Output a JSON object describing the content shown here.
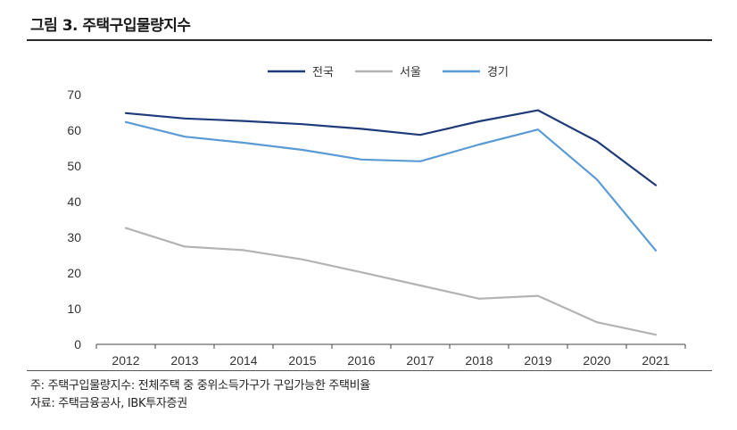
{
  "figure": {
    "title": "그림 3. 주택구입물량지수",
    "note": "주: 주택구입물량지수: 전체주택 중 중위소득가구가 구입가능한 주택비율",
    "source": "자료: 주택금융공사, IBK투자증권"
  },
  "chart_data": {
    "type": "line",
    "title": "",
    "xlabel": "",
    "ylabel": "",
    "ylim": [
      0,
      70
    ],
    "yticks": [
      0,
      10,
      20,
      30,
      40,
      50,
      60,
      70
    ],
    "grid": false,
    "legend_position": "top-center",
    "x": [
      "2012",
      "2013",
      "2014",
      "2015",
      "2016",
      "2017",
      "2018",
      "2019",
      "2020",
      "2021"
    ],
    "series": [
      {
        "name": "전국",
        "color": "#1f3b7a",
        "values": [
          64.8,
          63.3,
          62.6,
          61.7,
          60.4,
          58.7,
          62.5,
          65.6,
          56.9,
          44.6
        ]
      },
      {
        "name": "서울",
        "color": "#b3b3b3",
        "values": [
          32.6,
          27.4,
          26.4,
          23.8,
          20.2,
          16.5,
          12.8,
          13.6,
          6.2,
          2.7
        ]
      },
      {
        "name": "경기",
        "color": "#5b9bd5",
        "values": [
          62.3,
          58.2,
          56.5,
          54.5,
          51.8,
          51.3,
          56.0,
          60.2,
          46.2,
          26.3
        ]
      }
    ]
  }
}
